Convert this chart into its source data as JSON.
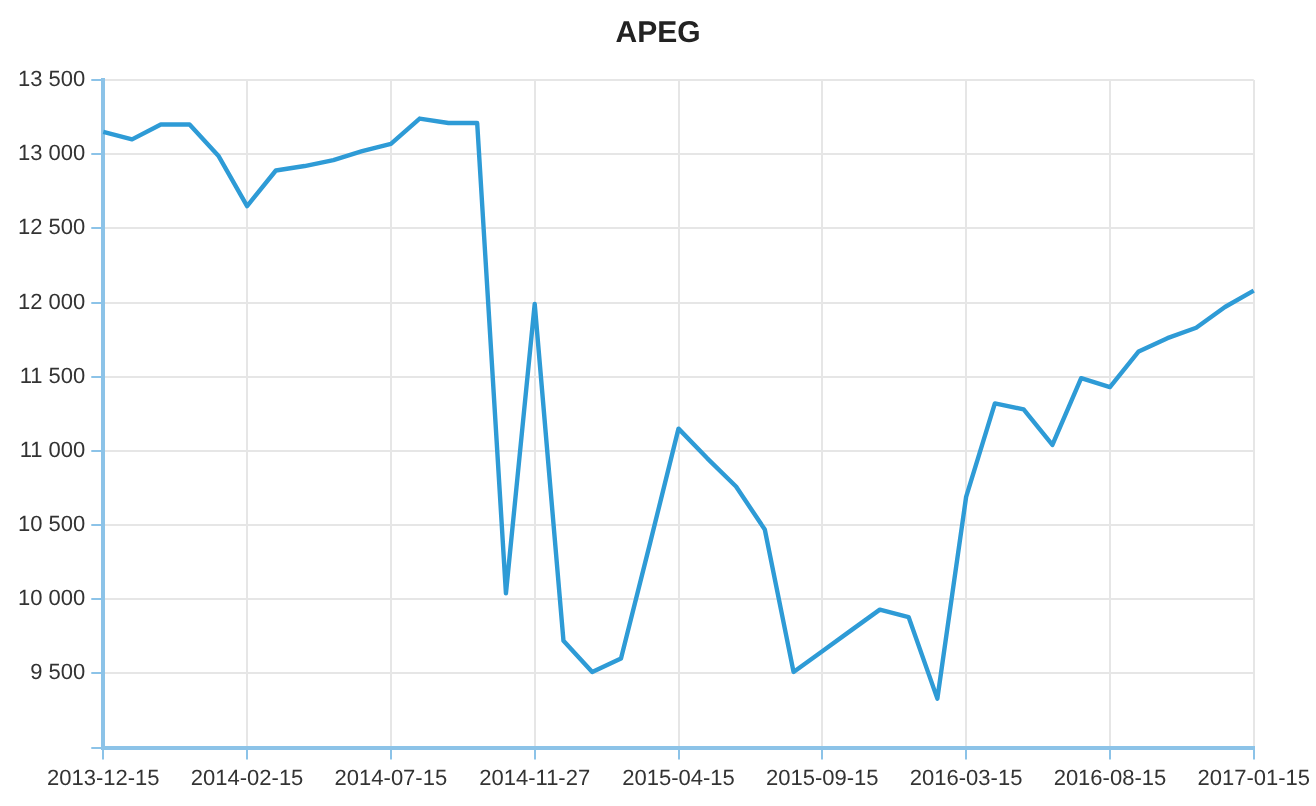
{
  "chart_data": {
    "type": "line",
    "title": "APEG",
    "categories": [
      "2013-12-15",
      null,
      null,
      null,
      null,
      "2014-02-15",
      null,
      null,
      null,
      null,
      "2014-07-15",
      null,
      null,
      null,
      null,
      "2014-11-27",
      null,
      null,
      null,
      null,
      "2015-04-15",
      null,
      null,
      null,
      null,
      "2015-09-15",
      null,
      null,
      null,
      null,
      "2016-03-15",
      null,
      null,
      null,
      null,
      "2016-08-15",
      null,
      null,
      null,
      null,
      "2017-01-15"
    ],
    "series": [
      {
        "color": "#2e9bd6",
        "values": [
          13150,
          13100,
          13200,
          13200,
          12990,
          12650,
          12890,
          12920,
          12960,
          13020,
          13070,
          13240,
          13210,
          13210,
          10040,
          11990,
          9720,
          9510,
          9600,
          10370,
          11150,
          10950,
          10760,
          10470,
          9510,
          9650,
          9790,
          9930,
          9880,
          9330,
          10690,
          11320,
          11280,
          11040,
          11490,
          11430,
          11670,
          11760,
          11830,
          11970,
          12080
        ]
      }
    ],
    "ylim": [
      9000,
      13500
    ],
    "yticks": [
      {
        "value": 9000,
        "label": null
      },
      {
        "value": 9500,
        "label": "9 500"
      },
      {
        "value": 10000,
        "label": "10 000"
      },
      {
        "value": 10500,
        "label": "10 500"
      },
      {
        "value": 11000,
        "label": "11 000"
      },
      {
        "value": 11500,
        "label": "11 500"
      },
      {
        "value": 12000,
        "label": "12 000"
      },
      {
        "value": 12500,
        "label": "12 500"
      },
      {
        "value": 13000,
        "label": "13 000"
      },
      {
        "value": 13500,
        "label": "13 500"
      }
    ],
    "grid": true,
    "marker": "none",
    "line_style": "solid",
    "legend": false
  }
}
